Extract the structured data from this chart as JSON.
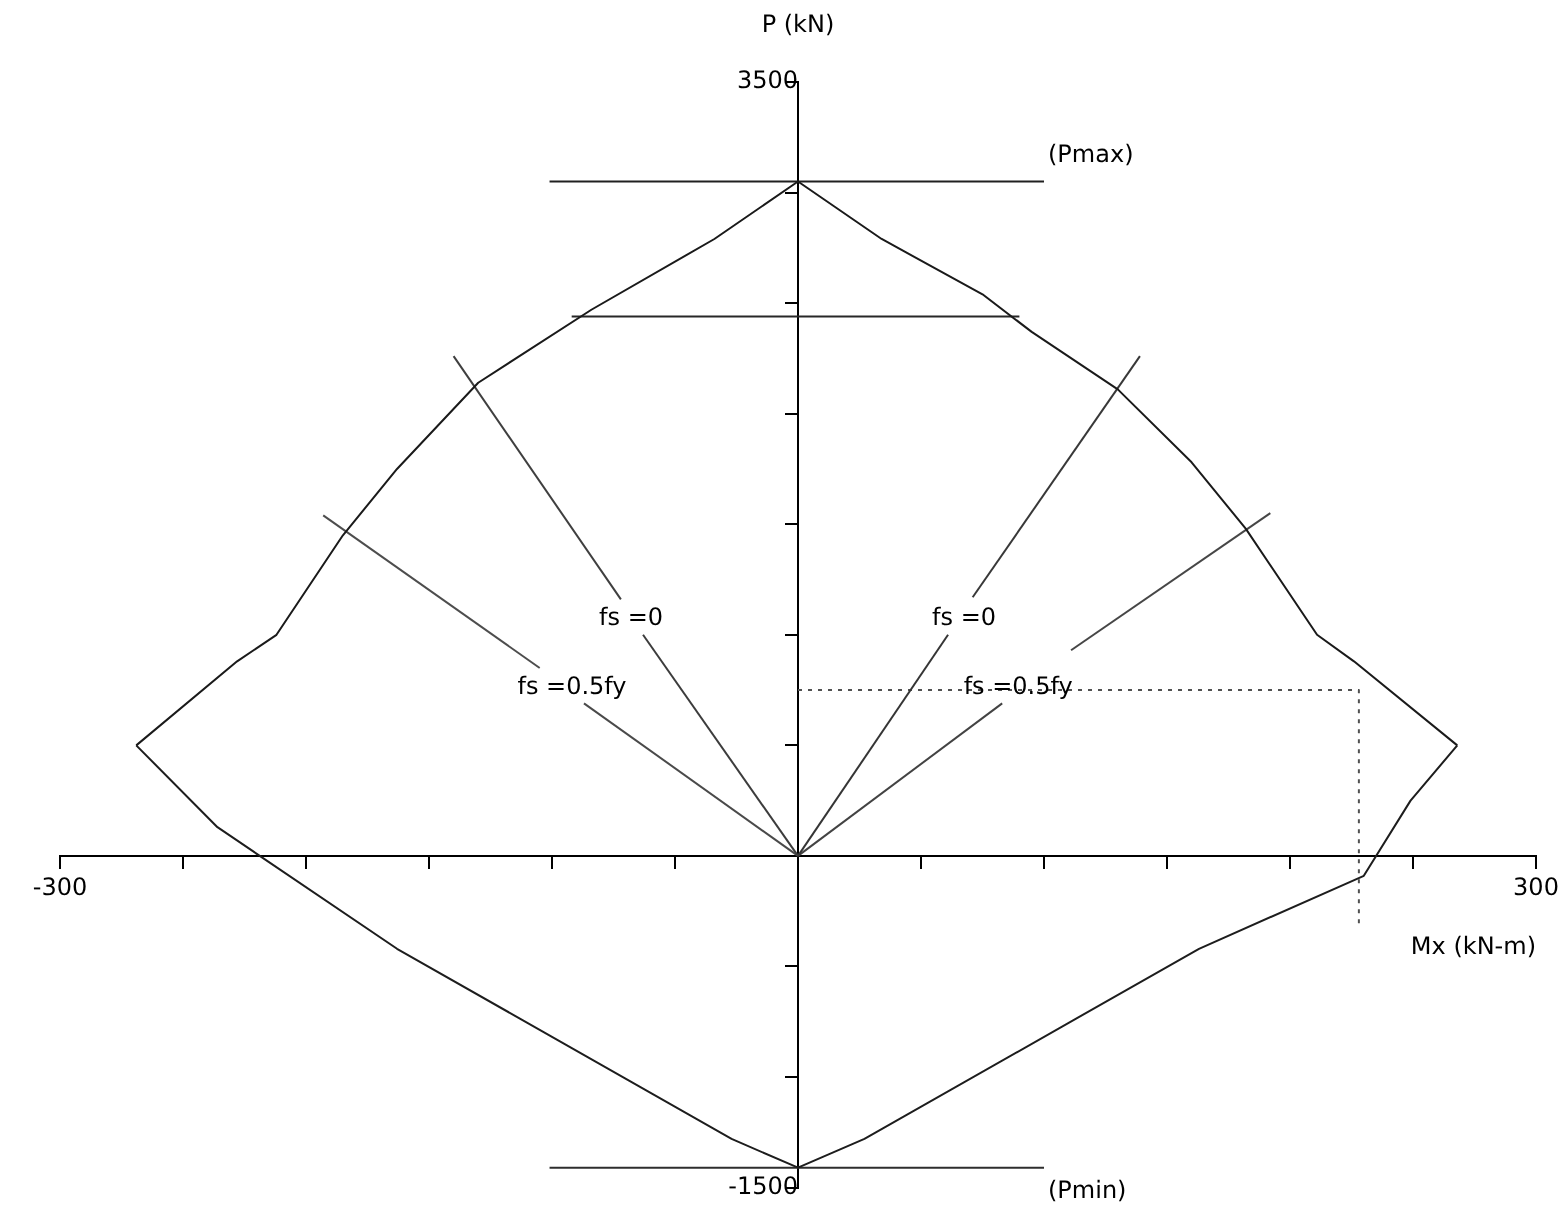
{
  "chart_data": {
    "type": "line",
    "xlabel": "Mx (kN-m)",
    "ylabel": "P (kN)",
    "xlim": [
      -300,
      300
    ],
    "ylim": [
      -1500,
      3500
    ],
    "xticks": [
      -300,
      {
        "value": -250,
        "label": null
      },
      {
        "value": -200,
        "label": null
      },
      {
        "value": -150,
        "label": null
      },
      {
        "value": -100,
        "label": null
      },
      {
        "value": -50,
        "label": null
      },
      {
        "value": 0,
        "label": null
      },
      {
        "value": 50,
        "label": null
      },
      {
        "value": 100,
        "label": null
      },
      {
        "value": 150,
        "label": null
      },
      {
        "value": 200,
        "label": null
      },
      {
        "value": 250,
        "label": null
      },
      300
    ],
    "yticks": [
      -1500,
      {
        "value": -1000,
        "label": null
      },
      {
        "value": -500,
        "label": null
      },
      {
        "value": 0,
        "label": null
      },
      {
        "value": 500,
        "label": null
      },
      {
        "value": 1000,
        "label": null
      },
      {
        "value": 1500,
        "label": null
      },
      {
        "value": 2000,
        "label": null
      },
      {
        "value": 2500,
        "label": null
      },
      {
        "value": 3000,
        "label": null
      },
      3500
    ],
    "grid": false,
    "legend": false,
    "marker": "none",
    "series": [
      {
        "color": "#1a1a1a",
        "line_style": "solid",
        "x": [
          -269,
          -228,
          -212,
          -185,
          -163,
          -130,
          -84,
          -34,
          0,
          34,
          75,
          95,
          130,
          160,
          182,
          211,
          226,
          268
        ],
        "values": [
          500,
          880,
          1000,
          1450,
          1750,
          2140,
          2470,
          2790,
          3050,
          2790,
          2540,
          2370,
          2110,
          1780,
          1480,
          1000,
          880,
          500
        ]
      },
      {
        "color": "#1d1d1d",
        "line_style": "solid",
        "x": [
          -269,
          -236,
          -163,
          -27,
          0,
          27,
          163,
          230,
          249,
          268
        ],
        "values": [
          500,
          130,
          -420,
          -1280,
          -1410,
          -1280,
          -420,
          -90,
          250,
          500
        ]
      },
      {
        "color": "#202020",
        "line_style": "solid",
        "x": [
          -101,
          100
        ],
        "values": [
          3050,
          3050
        ]
      },
      {
        "color": "#272727",
        "line_style": "solid",
        "x": [
          -92,
          90
        ],
        "values": [
          2440,
          2440
        ]
      },
      {
        "color": "#2e2e2e",
        "line_style": "solid",
        "x": [
          -101,
          100
        ],
        "values": [
          -1410,
          -1410
        ]
      },
      {
        "color": "#353535",
        "line_style": "solid",
        "x": [
          0,
          61
        ],
        "values": [
          0,
          1000
        ]
      },
      {
        "color": "#383838",
        "line_style": "solid",
        "x": [
          71,
          139
        ],
        "values": [
          1170,
          2260
        ]
      },
      {
        "color": "#3c3c3c",
        "line_style": "solid",
        "x": [
          0,
          -63
        ],
        "values": [
          0,
          1000
        ]
      },
      {
        "color": "#3f3f3f",
        "line_style": "solid",
        "x": [
          -72,
          -140
        ],
        "values": [
          1160,
          2260
        ]
      },
      {
        "color": "#434343",
        "line_style": "solid",
        "x": [
          0,
          83
        ],
        "values": [
          0,
          690
        ]
      },
      {
        "color": "#464646",
        "line_style": "solid",
        "x": [
          111,
          192
        ],
        "values": [
          930,
          1550
        ]
      },
      {
        "color": "#4a4a4a",
        "line_style": "solid",
        "x": [
          0,
          -87
        ],
        "values": [
          0,
          690
        ]
      },
      {
        "color": "#4d4d4d",
        "line_style": "solid",
        "x": [
          -105,
          -193
        ],
        "values": [
          850,
          1540
        ]
      },
      {
        "color": "#515151",
        "line_style": "dotted",
        "x": [
          0,
          228,
          228
        ],
        "values": [
          750,
          750,
          -330
        ]
      }
    ],
    "annotations": [
      {
        "text": "fs =0",
        "x": -63,
        "y": 1000
      },
      {
        "text": "fs =0",
        "x": 61,
        "y": 1000
      },
      {
        "text": "fs =0.5fy",
        "x": -87,
        "y": 690
      },
      {
        "text": "fs =0.5fy",
        "x": 83,
        "y": 690
      },
      {
        "text": "(Pmax)",
        "x": 100,
        "y": 3050
      },
      {
        "text": "(Pmin)",
        "x": 100,
        "y": -1410
      }
    ]
  }
}
